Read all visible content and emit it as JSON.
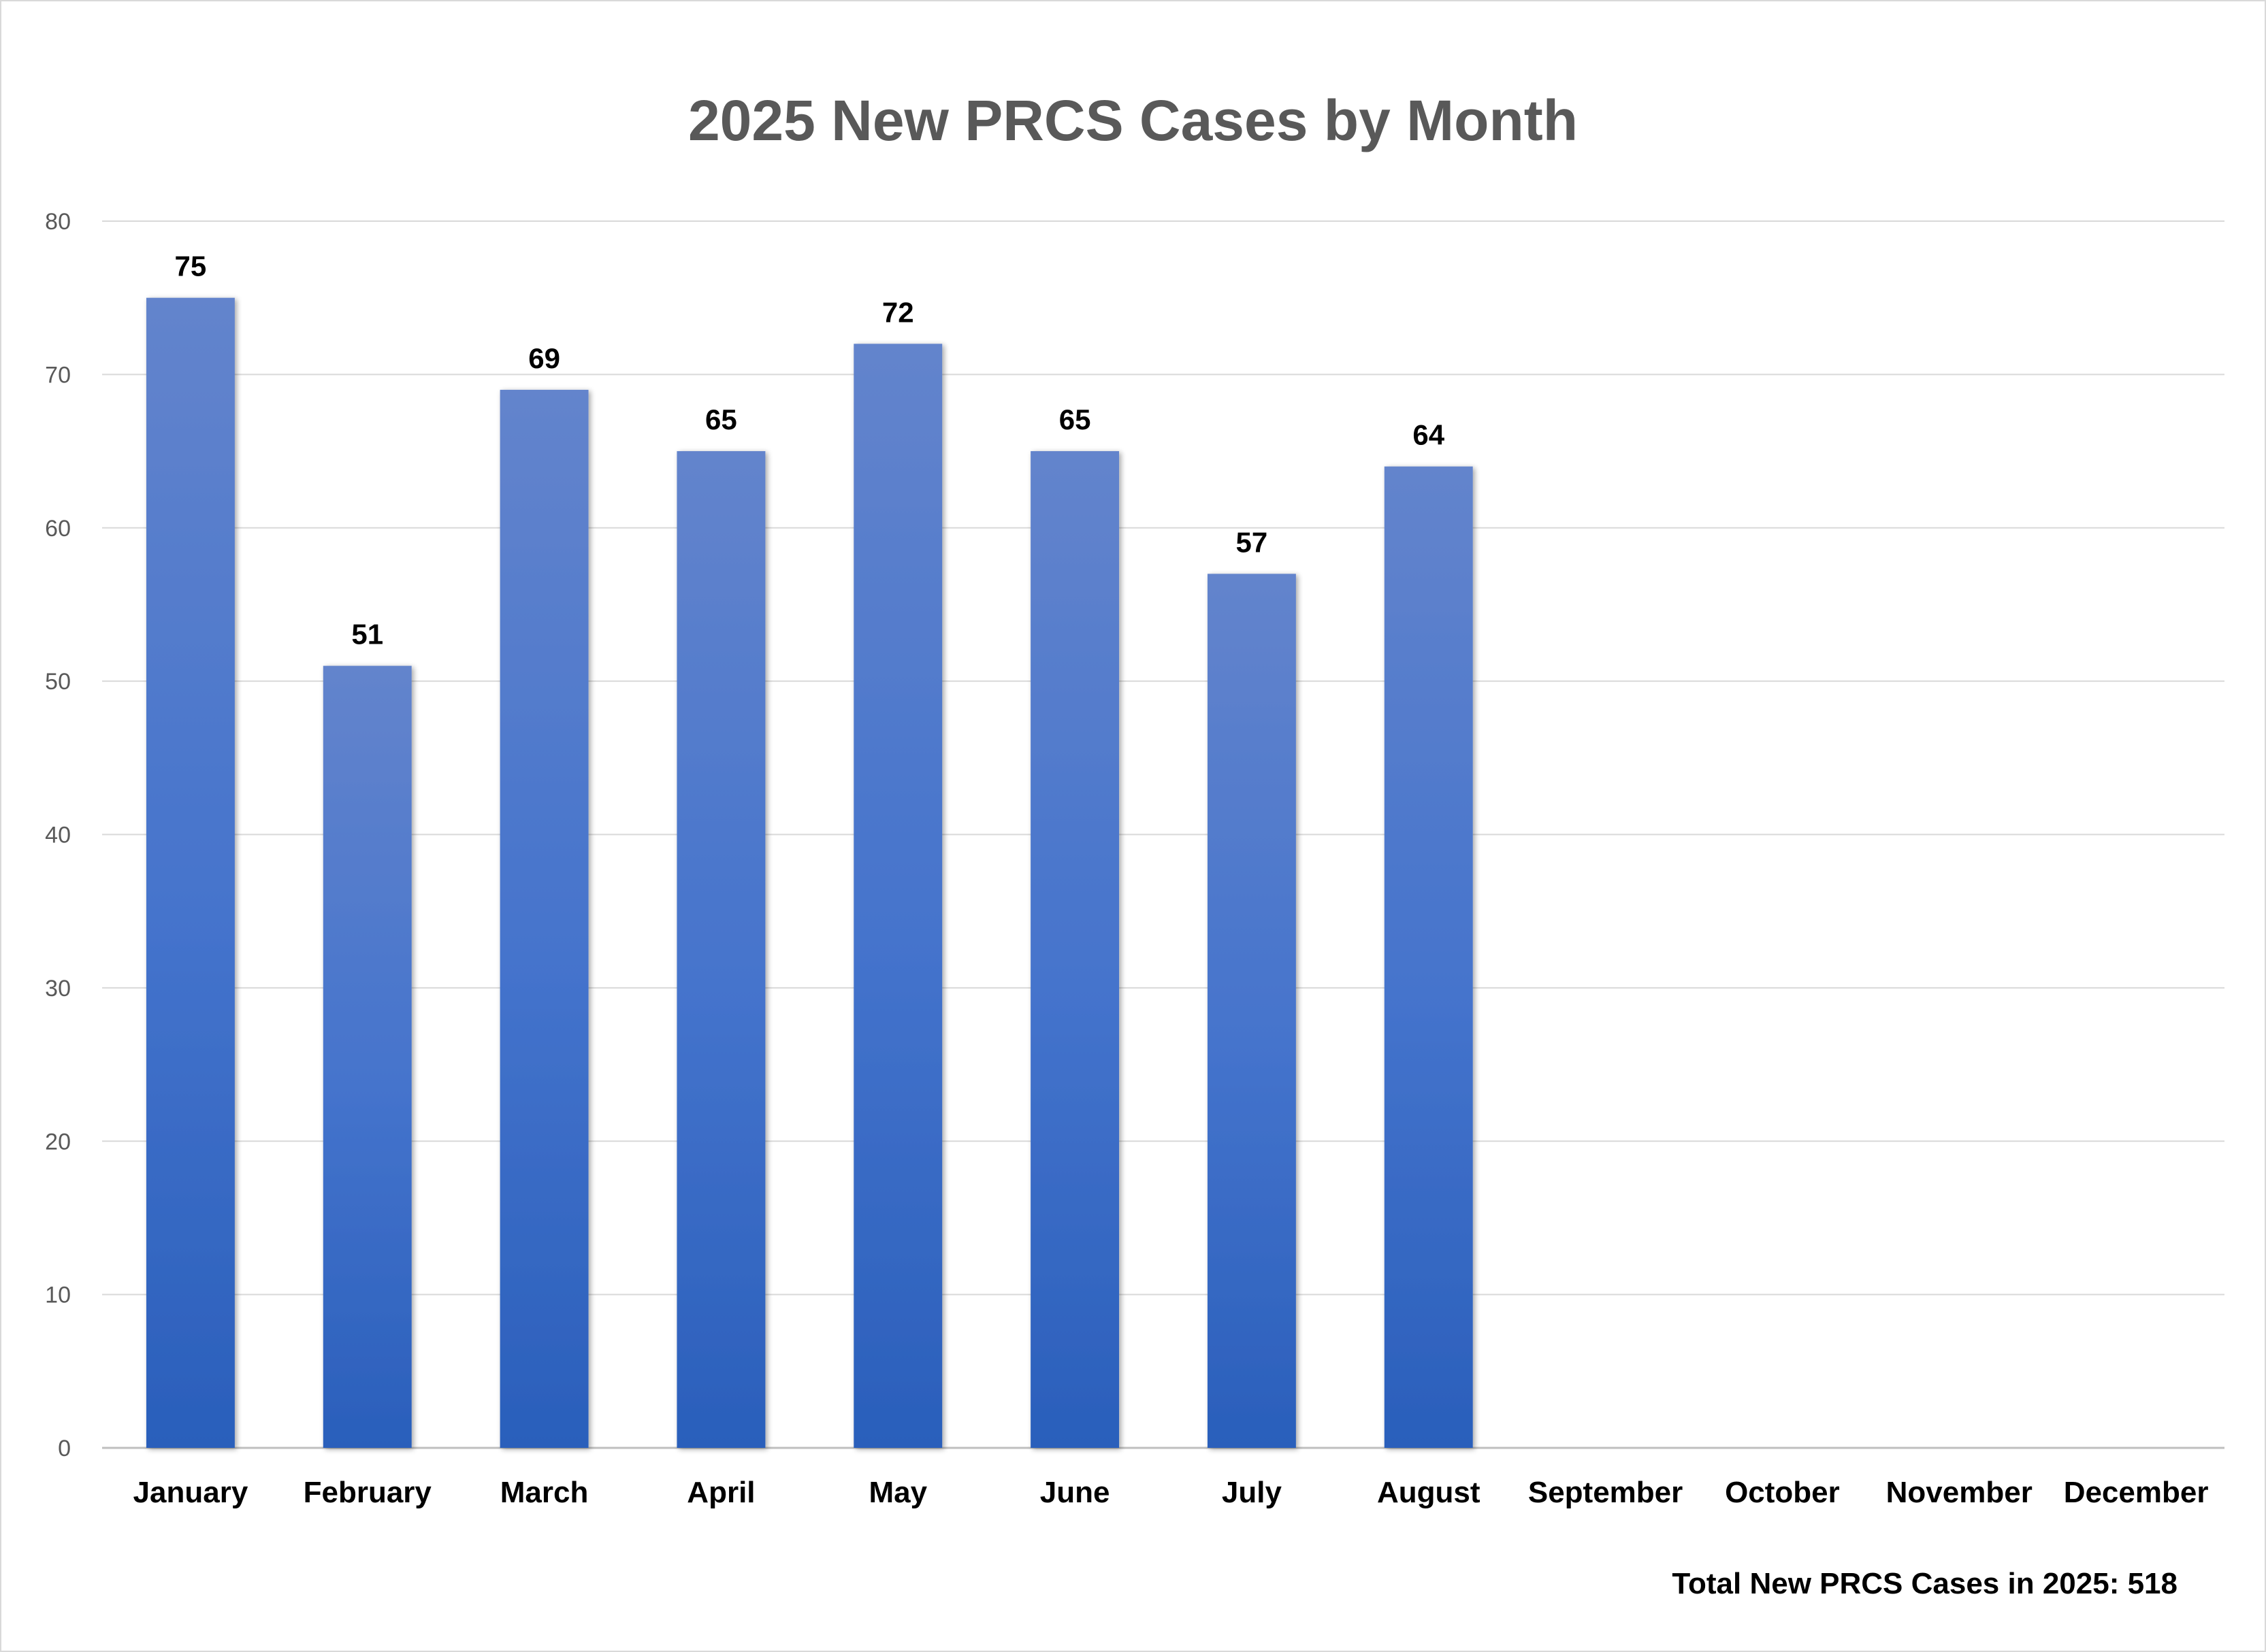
{
  "chart_data": {
    "type": "bar",
    "title": "2025 New PRCS Cases by Month",
    "categories": [
      "January",
      "February",
      "March",
      "April",
      "May",
      "June",
      "July",
      "August",
      "September",
      "October",
      "November",
      "December"
    ],
    "values": [
      75,
      51,
      69,
      65,
      72,
      65,
      57,
      64,
      null,
      null,
      null,
      null
    ],
    "data_labels": [
      "75",
      "51",
      "69",
      "65",
      "72",
      "65",
      "57",
      "64",
      "",
      "",
      "",
      ""
    ],
    "xlabel": "",
    "ylabel": "",
    "ylim": [
      0,
      80
    ],
    "yticks": [
      0,
      10,
      20,
      30,
      40,
      50,
      60,
      70,
      80
    ],
    "grid": true,
    "legend": "none",
    "bar_color_top": "#6384cc",
    "bar_color_bottom": "#2a5fbb"
  },
  "footnote": "Total New PRCS Cases in 2025: 518"
}
